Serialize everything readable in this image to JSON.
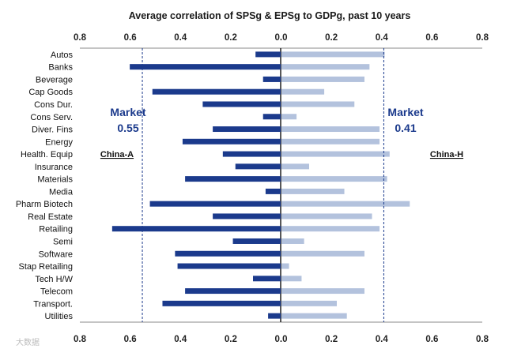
{
  "chart_data": {
    "type": "bar",
    "title": "Average correlation of SPSg & EPSg to GDPg, past 10 years",
    "orientation": "horizontal-diverging",
    "xlim": [
      -0.8,
      0.8
    ],
    "x_ticks": [
      "0.8",
      "0.6",
      "0.4",
      "0.2",
      "0.0",
      "0.2",
      "0.4",
      "0.6",
      "0.8"
    ],
    "grid": false,
    "categories": [
      "Autos",
      "Banks",
      "Beverage",
      "Cap Goods",
      "Cons Dur.",
      "Cons Serv.",
      "Diver. Fins",
      "Energy",
      "Health. Equip",
      "Insurance",
      "Materials",
      "Media",
      "Pharm Biotech",
      "Real Estate",
      "Retailing",
      "Semi",
      "Software",
      "Stap Retailing",
      "Tech H/W",
      "Telecom",
      "Transport.",
      "Utilities"
    ],
    "series": [
      {
        "name": "China-A",
        "color": "#1b3a8c",
        "values": [
          0.1,
          0.6,
          0.07,
          0.51,
          0.31,
          0.07,
          0.27,
          0.39,
          0.23,
          0.18,
          0.38,
          0.06,
          0.52,
          0.27,
          0.67,
          0.19,
          0.42,
          0.41,
          0.11,
          0.38,
          0.47,
          0.05
        ]
      },
      {
        "name": "China-H",
        "color": "#b3c2dd",
        "values": [
          0.41,
          0.35,
          0.33,
          0.17,
          0.29,
          0.06,
          0.39,
          0.39,
          0.43,
          0.11,
          0.42,
          0.25,
          0.51,
          0.36,
          0.39,
          0.09,
          0.33,
          0.03,
          0.08,
          0.33,
          0.22,
          0.26
        ]
      }
    ],
    "reference_lines": [
      {
        "series": "China-A",
        "value": 0.55,
        "label_line1": "Market",
        "label_line2": "0.55"
      },
      {
        "series": "China-H",
        "value": 0.41,
        "label_line1": "Market",
        "label_line2": "0.41"
      }
    ],
    "side_labels": [
      "China-A",
      "China-H"
    ]
  },
  "watermark": "大数据"
}
